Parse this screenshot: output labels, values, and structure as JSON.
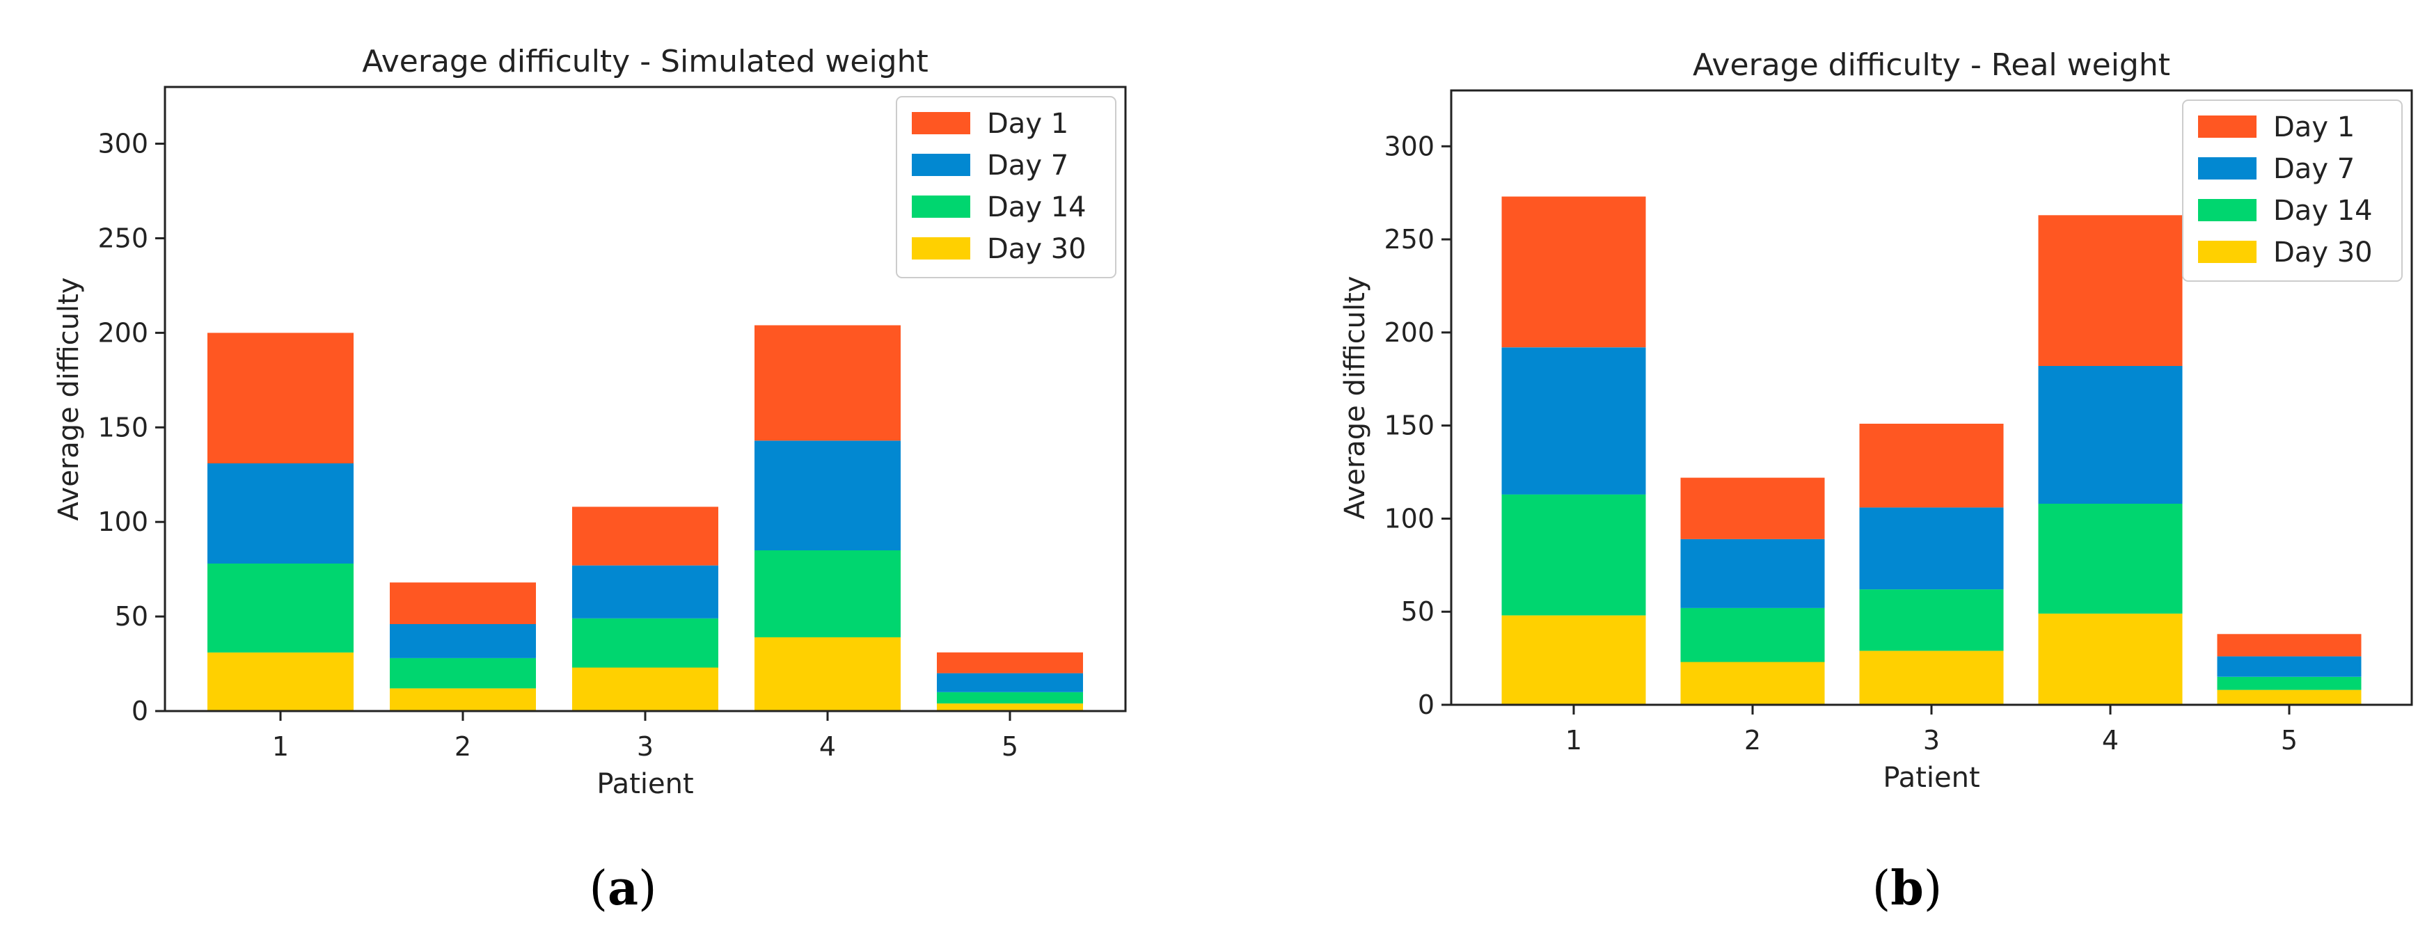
{
  "colors": {
    "day1": "#FF5722",
    "day7": "#0288D1",
    "day14": "#00D66F",
    "day30": "#FFD000",
    "axis": "#222222"
  },
  "captions": {
    "a": {
      "open": "(",
      "letter": "a",
      "close": ")"
    },
    "b": {
      "open": "(",
      "letter": "b",
      "close": ")"
    }
  },
  "chart_data": [
    {
      "type": "bar",
      "stacked": true,
      "title": "Average difficulty - Simulated weight",
      "xlabel": "Patient",
      "ylabel": "Average difficulty",
      "categories": [
        "1",
        "2",
        "3",
        "4",
        "5"
      ],
      "ylim": [
        0,
        330
      ],
      "yticks": [
        0,
        50,
        100,
        150,
        200,
        250,
        300
      ],
      "legend_position": "top-right",
      "series": [
        {
          "name": "Day 30",
          "color_key": "day30",
          "values": [
            31,
            12,
            23,
            39,
            4
          ]
        },
        {
          "name": "Day 14",
          "color_key": "day14",
          "values": [
            47,
            16,
            26,
            46,
            6
          ]
        },
        {
          "name": "Day 7",
          "color_key": "day7",
          "values": [
            53,
            18,
            28,
            58,
            10
          ]
        },
        {
          "name": "Day 1",
          "color_key": "day1",
          "values": [
            69,
            22,
            31,
            61,
            11
          ]
        }
      ],
      "legend_order": [
        "Day 1",
        "Day 7",
        "Day 14",
        "Day 30"
      ]
    },
    {
      "type": "bar",
      "stacked": true,
      "title": "Average difficulty - Real weight",
      "xlabel": "Patient",
      "ylabel": "Average difficulty",
      "categories": [
        "1",
        "2",
        "3",
        "4",
        "5"
      ],
      "ylim": [
        0,
        330
      ],
      "yticks": [
        0,
        50,
        100,
        150,
        200,
        250,
        300
      ],
      "legend_position": "top-right",
      "series": [
        {
          "name": "Day 30",
          "color_key": "day30",
          "values": [
            48,
            23,
            29,
            49,
            8
          ]
        },
        {
          "name": "Day 14",
          "color_key": "day14",
          "values": [
            65,
            29,
            33,
            59,
            7
          ]
        },
        {
          "name": "Day 7",
          "color_key": "day7",
          "values": [
            79,
            37,
            44,
            74,
            11
          ]
        },
        {
          "name": "Day 1",
          "color_key": "day1",
          "values": [
            81,
            33,
            45,
            81,
            12
          ]
        }
      ],
      "legend_order": [
        "Day 1",
        "Day 7",
        "Day 14",
        "Day 30"
      ]
    }
  ]
}
